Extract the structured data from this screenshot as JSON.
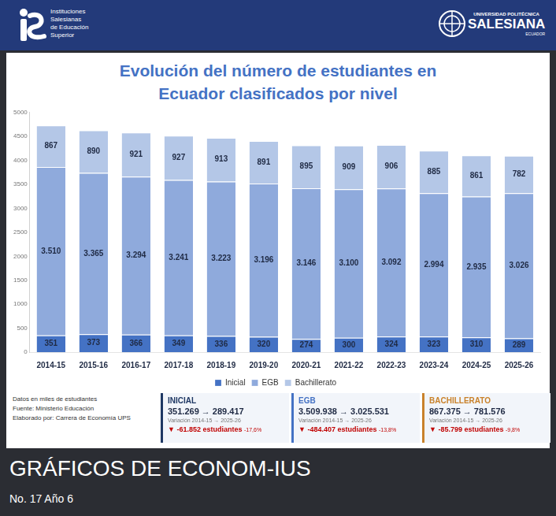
{
  "header": {
    "left_logo_lines": [
      "Instituciones",
      "Salesianas",
      "de Educación",
      "Superior"
    ],
    "right_logo_lines": [
      "UNIVERSIDAD POLITÉCNICA",
      "SALESIANA",
      "ECUADOR"
    ]
  },
  "chart_data": {
    "type": "bar",
    "title": "Evolución del número de estudiantes en Ecuador clasificados por nivel",
    "stacked": true,
    "categories": [
      "2014-15",
      "2015-16",
      "2016-17",
      "2017-18",
      "2018-19",
      "2019-20",
      "2020-21",
      "2021-22",
      "2022-23",
      "2023-24",
      "2024-25",
      "2025-26"
    ],
    "series": [
      {
        "name": "Inicial",
        "color": "#4472c4",
        "values": [
          351,
          373,
          366,
          349,
          336,
          320,
          274,
          300,
          324,
          323,
          310,
          289
        ]
      },
      {
        "name": "EGB",
        "color": "#8faadc",
        "values": [
          3510,
          3365,
          3294,
          3241,
          3223,
          3196,
          3146,
          3100,
          3092,
          2994,
          2935,
          3026
        ],
        "value_labels": [
          "3.510",
          "3.365",
          "3.294",
          "3.241",
          "3.223",
          "3.196",
          "3.146",
          "3.100",
          "3.092",
          "2.994",
          "2.935",
          "3.026"
        ]
      },
      {
        "name": "Bachillerato",
        "color": "#b4c7e7",
        "values": [
          867,
          890,
          921,
          927,
          913,
          891,
          895,
          909,
          906,
          885,
          861,
          782
        ]
      }
    ],
    "ylim": [
      0,
      5000
    ],
    "yticks": [
      0,
      500,
      1000,
      1500,
      2000,
      2500,
      3000,
      3500,
      4000,
      4500,
      5000
    ],
    "grid": false,
    "legend": "bottom",
    "data_labels": true
  },
  "notes": [
    "Datos en miles de estudiantes",
    "Fuente: Ministerio Educación",
    "Elaborado por: Carrera de Economía UPS"
  ],
  "summary": [
    {
      "title": "INICIAL",
      "color": "#1f3864",
      "values_text": "351.269 → 289.417",
      "period": "Variación 2014-15 → 2025-26",
      "change": "▼ -61.852 estudiantes",
      "change_pct": "-17,6%"
    },
    {
      "title": "EGB",
      "color": "#4472c4",
      "values_text": "3.509.938 → 3.025.531",
      "period": "Variación 2014-15 → 2025-26",
      "change": "▼ -484.407 estudiantes",
      "change_pct": "-13,8%"
    },
    {
      "title": "BACHILLERATO",
      "color": "#c9822b",
      "values_text": "867.375 → 781.576",
      "period": "Variación 2014-15 → 2025-26",
      "change": "▼ -85.799 estudiantes",
      "change_pct": "-9,8%"
    }
  ],
  "footer": {
    "title": "GRÁFICOS DE ECONOM-IUS",
    "issue": "No. 17 Año 6"
  }
}
